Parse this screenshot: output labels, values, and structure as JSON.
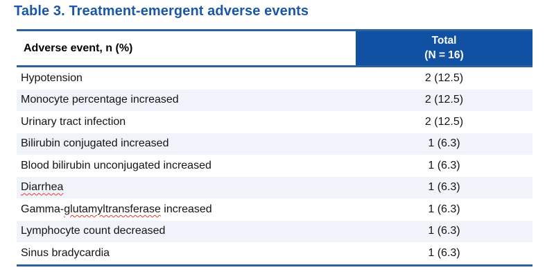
{
  "title": "Table 3. Treatment-emergent adverse events",
  "table": {
    "header": {
      "col1": "Adverse event, n (%)",
      "col2_line1": "Total",
      "col2_line2": "(N = 16)"
    },
    "rows": [
      {
        "event": "Hypotension",
        "value": "2 (12.5)"
      },
      {
        "event": "Monocyte percentage increased",
        "value": "2 (12.5)"
      },
      {
        "event": "Urinary tract infection",
        "value": "2 (12.5)"
      },
      {
        "event": "Bilirubin conjugated increased",
        "value": "1 (6.3)"
      },
      {
        "event": "Blood bilirubin unconjugated increased",
        "value": "1 (6.3)"
      },
      {
        "event": "Diarrhea",
        "value": "1 (6.3)",
        "spellcheck_flagged": true
      },
      {
        "event": "Gamma-glutamyltransferase increased",
        "event_prefix": "Gamma-",
        "event_misspelled": "glutamyltransferase",
        "event_suffix": " increased",
        "value": "1 (6.3)",
        "spellcheck_flagged": true
      },
      {
        "event": "Lymphocyte count decreased",
        "value": "1 (6.3)"
      },
      {
        "event": "Sinus bradycardia",
        "value": "1 (6.3)"
      }
    ]
  },
  "colors": {
    "title_blue": "#1b57a8",
    "header_cell_blue": "#1151a3",
    "rule_blue": "#2d639c",
    "band_light_blue": "#f0f4fa",
    "spellcheck_red": "#dd3a2a"
  }
}
